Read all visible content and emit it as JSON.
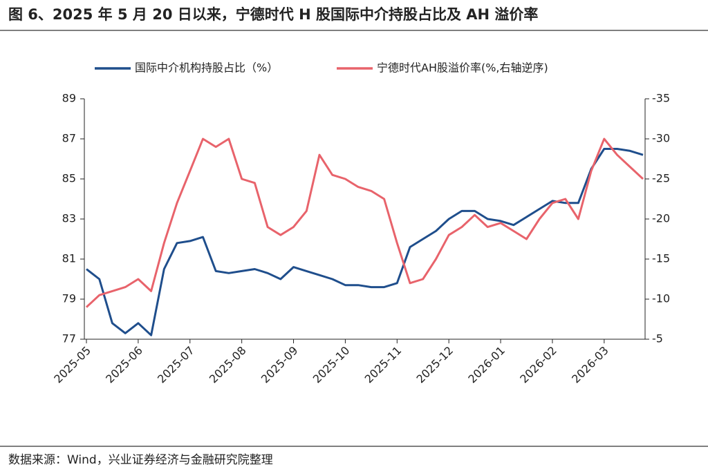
{
  "chart_data": {
    "type": "line",
    "title": "图 6、2025 年 5 月 20 日以来，宁德时代 H 股国际中介持股占比及 AH 溢价率",
    "source": "数据来源：Wind，兴业证券经济与金融研究院整理",
    "categories": [
      "2025-05",
      null,
      null,
      null,
      "2025-06",
      null,
      null,
      null,
      "2025-07",
      null,
      null,
      null,
      "2025-08",
      null,
      null,
      null,
      "2025-09",
      null,
      null,
      null,
      "2025-10",
      null,
      null,
      null,
      "2025-11",
      null,
      null,
      null,
      "2025-12",
      null,
      null,
      null,
      "2026-01",
      null,
      null,
      null,
      "2026-02",
      null,
      null,
      null,
      "2026-03",
      null,
      null,
      null
    ],
    "ylim": [
      77,
      89
    ],
    "yticks": [
      77,
      79,
      81,
      83,
      85,
      87,
      89
    ],
    "y2lim": [
      -5,
      -35
    ],
    "y2ticks": [
      -5,
      -10,
      -15,
      -20,
      -25,
      -30,
      -35
    ],
    "legend": "top",
    "series": [
      {
        "name": "国际中介机构持股占比（%）",
        "color": "#1f4e8c",
        "values": [
          80.5,
          80,
          77.8,
          77.3,
          77.8,
          77.2,
          80.5,
          81.8,
          81.9,
          82.1,
          80.4,
          80.3,
          80.4,
          80.5,
          80.3,
          80.0,
          80.6,
          80.4,
          80.2,
          80.0,
          79.7,
          79.7,
          79.6,
          79.6,
          79.8,
          81.6,
          82.0,
          82.4,
          83.0,
          83.4,
          83.4,
          83.0,
          82.9,
          82.7,
          83.1,
          83.5,
          83.9,
          83.8,
          83.8,
          85.5,
          86.5,
          86.5,
          86.4,
          86.2
        ]
      },
      {
        "name": "宁德时代AH股溢价率(%,右轴逆序)",
        "color": "#e8636b",
        "axis": "y2",
        "values": [
          -9,
          -10.5,
          -11,
          -11.5,
          -12.5,
          -11,
          -17,
          -22,
          -26,
          -30,
          -29,
          -30,
          -25,
          -24.5,
          -19,
          -18,
          -19,
          -21,
          -28,
          -25.5,
          -25,
          -24,
          -23.5,
          -22.5,
          -17,
          -12,
          -12.5,
          -15,
          -18,
          -19,
          -20.5,
          -19,
          -19.5,
          -18.5,
          -17.5,
          -20,
          -22,
          -22.5,
          -20,
          -26,
          -30,
          -28,
          -26.5,
          -25
        ]
      }
    ]
  }
}
